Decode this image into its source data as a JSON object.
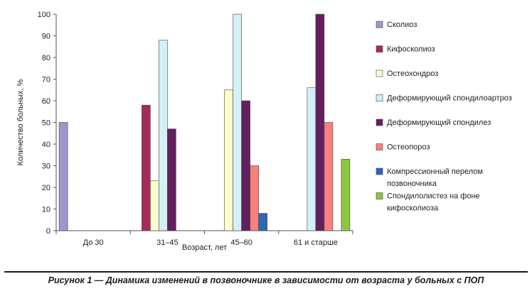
{
  "caption": "Рисунок 1 — Динамика изменений в позвоночнике в зависимости от возраста у больных с ПОП",
  "chart_data": {
    "type": "bar",
    "xlabel": "Возраст, лет",
    "ylabel": "Количество больных, %",
    "ylim": [
      0,
      100
    ],
    "yticks": [
      0,
      10,
      20,
      30,
      40,
      50,
      60,
      70,
      80,
      90,
      100
    ],
    "grid": false,
    "legend_position": "right",
    "categories": [
      "До 30",
      "31–45",
      "45–60",
      "61 и старше"
    ],
    "series": [
      {
        "name": "Сколиоз",
        "color": "#9b98cc",
        "values": [
          50,
          null,
          null,
          null
        ]
      },
      {
        "name": "Кифосколиоз",
        "color": "#a52b5d",
        "values": [
          null,
          58,
          null,
          null
        ]
      },
      {
        "name": "Остеохондроз",
        "color": "#ffffcc",
        "values": [
          null,
          23,
          65,
          null
        ]
      },
      {
        "name": "Деформирующий спондилоартроз",
        "color": "#d4f0f7",
        "values": [
          null,
          88,
          100,
          66
        ]
      },
      {
        "name": "Деформирующий спондилез",
        "color": "#63205f",
        "values": [
          null,
          47,
          60,
          100
        ]
      },
      {
        "name": "Остеопороз",
        "color": "#f7817c",
        "values": [
          null,
          null,
          30,
          50
        ]
      },
      {
        "name": "Компрессионный перелом позвоночника",
        "color": "#2e67b3",
        "values": [
          null,
          null,
          8,
          null
        ]
      },
      {
        "name": "Спондилолистез на фоне кифосколиоза",
        "color": "#8fc63f",
        "values": [
          null,
          null,
          null,
          33
        ]
      }
    ]
  }
}
